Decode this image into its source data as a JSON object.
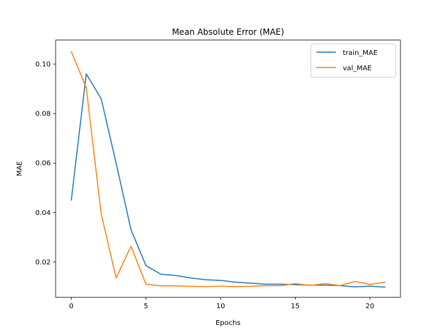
{
  "chart_data": {
    "type": "line",
    "title": "Mean Absolute Error (MAE)",
    "xlabel": "Epochs",
    "ylabel": "MAE",
    "xlim": [
      -1.05,
      22.05
    ],
    "ylim": [
      0.0057,
      0.1097
    ],
    "xticks": [
      0,
      5,
      10,
      15,
      20
    ],
    "yticks": [
      0.02,
      0.04,
      0.06,
      0.08,
      0.1
    ],
    "ytick_labels": [
      "0.02",
      "0.04",
      "0.06",
      "0.08",
      "0.10"
    ],
    "grid": false,
    "legend_position": "upper right",
    "x": [
      0,
      1,
      2,
      3,
      4,
      5,
      6,
      7,
      8,
      9,
      10,
      11,
      12,
      13,
      14,
      15,
      16,
      17,
      18,
      19,
      20,
      21
    ],
    "series": [
      {
        "name": "train_MAE",
        "color": "#1f77b4",
        "values": [
          0.045,
          0.096,
          0.086,
          0.06,
          0.033,
          0.0185,
          0.015,
          0.0145,
          0.0135,
          0.0128,
          0.0125,
          0.0118,
          0.0114,
          0.011,
          0.011,
          0.0108,
          0.0106,
          0.0106,
          0.0104,
          0.0099,
          0.0102,
          0.0098
        ]
      },
      {
        "name": "val_MAE",
        "color": "#ff7f0e",
        "values": [
          0.105,
          0.0905,
          0.0395,
          0.0135,
          0.0263,
          0.011,
          0.0103,
          0.0103,
          0.0101,
          0.01,
          0.0102,
          0.01,
          0.0101,
          0.0104,
          0.0104,
          0.0112,
          0.0105,
          0.0112,
          0.0104,
          0.0121,
          0.0109,
          0.0118
        ]
      }
    ]
  }
}
